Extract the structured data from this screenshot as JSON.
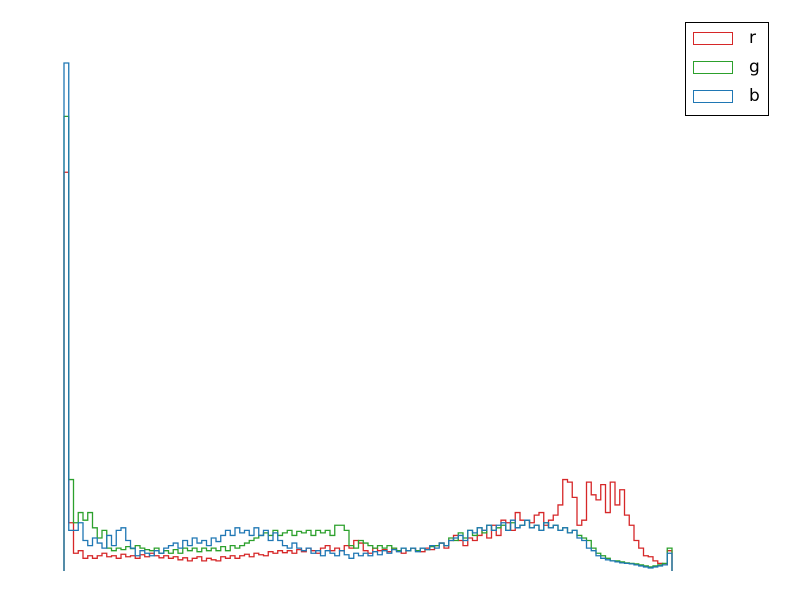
{
  "chart_data": {
    "type": "histogram",
    "title": "",
    "xlabel": "",
    "ylabel": "",
    "axes_visible": false,
    "grid": false,
    "legend_position": "top-right",
    "bins": 128,
    "ylim": [
      0,
      1
    ],
    "series": [
      {
        "name": "r",
        "color": "#d62728",
        "values": [
          0.785,
          0.095,
          0.035,
          0.04,
          0.025,
          0.03,
          0.025,
          0.03,
          0.035,
          0.028,
          0.03,
          0.025,
          0.033,
          0.028,
          0.03,
          0.025,
          0.032,
          0.028,
          0.035,
          0.03,
          0.026,
          0.03,
          0.025,
          0.028,
          0.022,
          0.026,
          0.02,
          0.025,
          0.028,
          0.02,
          0.025,
          0.022,
          0.02,
          0.028,
          0.025,
          0.03,
          0.025,
          0.03,
          0.033,
          0.028,
          0.035,
          0.032,
          0.03,
          0.038,
          0.035,
          0.04,
          0.036,
          0.04,
          0.035,
          0.042,
          0.038,
          0.045,
          0.04,
          0.035,
          0.045,
          0.05,
          0.04,
          0.045,
          0.04,
          0.05,
          0.045,
          0.06,
          0.055,
          0.04,
          0.035,
          0.045,
          0.04,
          0.042,
          0.038,
          0.045,
          0.04,
          0.035,
          0.04,
          0.045,
          0.04,
          0.038,
          0.045,
          0.042,
          0.05,
          0.055,
          0.045,
          0.06,
          0.07,
          0.06,
          0.05,
          0.065,
          0.06,
          0.07,
          0.08,
          0.065,
          0.09,
          0.07,
          0.1,
          0.095,
          0.08,
          0.115,
          0.1,
          0.1,
          0.095,
          0.11,
          0.115,
          0.09,
          0.1,
          0.11,
          0.13,
          0.18,
          0.175,
          0.145,
          0.09,
          0.1,
          0.175,
          0.15,
          0.14,
          0.17,
          0.115,
          0.175,
          0.13,
          0.16,
          0.11,
          0.09,
          0.06,
          0.045,
          0.03,
          0.028,
          0.02,
          0.015,
          0.012,
          0.04
        ]
      },
      {
        "name": "g",
        "color": "#2ca02c",
        "values": [
          0.895,
          0.18,
          0.095,
          0.115,
          0.1,
          0.115,
          0.085,
          0.065,
          0.08,
          0.045,
          0.04,
          0.045,
          0.042,
          0.048,
          0.044,
          0.05,
          0.045,
          0.042,
          0.04,
          0.045,
          0.035,
          0.04,
          0.035,
          0.042,
          0.035,
          0.045,
          0.04,
          0.045,
          0.038,
          0.045,
          0.04,
          0.045,
          0.04,
          0.048,
          0.04,
          0.05,
          0.045,
          0.05,
          0.055,
          0.06,
          0.065,
          0.07,
          0.075,
          0.07,
          0.08,
          0.07,
          0.075,
          0.08,
          0.07,
          0.078,
          0.075,
          0.08,
          0.07,
          0.08,
          0.075,
          0.08,
          0.07,
          0.09,
          0.09,
          0.08,
          0.05,
          0.045,
          0.06,
          0.055,
          0.05,
          0.045,
          0.05,
          0.045,
          0.05,
          0.045,
          0.04,
          0.045,
          0.04,
          0.045,
          0.04,
          0.045,
          0.042,
          0.048,
          0.05,
          0.055,
          0.05,
          0.065,
          0.06,
          0.075,
          0.065,
          0.08,
          0.07,
          0.085,
          0.075,
          0.09,
          0.08,
          0.085,
          0.09,
          0.08,
          0.095,
          0.085,
          0.09,
          0.1,
          0.085,
          0.09,
          0.08,
          0.095,
          0.085,
          0.09,
          0.08,
          0.085,
          0.075,
          0.08,
          0.07,
          0.065,
          0.06,
          0.045,
          0.035,
          0.03,
          0.025,
          0.02,
          0.02,
          0.018,
          0.016,
          0.015,
          0.014,
          0.012,
          0.01,
          0.008,
          0.01,
          0.012,
          0.015,
          0.045
        ]
      },
      {
        "name": "b",
        "color": "#1f77b4",
        "values": [
          1.0,
          0.08,
          0.08,
          0.095,
          0.06,
          0.05,
          0.065,
          0.055,
          0.045,
          0.07,
          0.05,
          0.08,
          0.085,
          0.06,
          0.045,
          0.03,
          0.04,
          0.035,
          0.03,
          0.04,
          0.035,
          0.045,
          0.05,
          0.055,
          0.045,
          0.06,
          0.05,
          0.065,
          0.055,
          0.06,
          0.05,
          0.065,
          0.058,
          0.07,
          0.08,
          0.07,
          0.085,
          0.075,
          0.08,
          0.07,
          0.085,
          0.07,
          0.08,
          0.06,
          0.075,
          0.06,
          0.05,
          0.045,
          0.055,
          0.045,
          0.04,
          0.045,
          0.035,
          0.04,
          0.03,
          0.04,
          0.035,
          0.03,
          0.04,
          0.032,
          0.025,
          0.035,
          0.03,
          0.035,
          0.03,
          0.038,
          0.032,
          0.04,
          0.035,
          0.042,
          0.038,
          0.045,
          0.04,
          0.045,
          0.038,
          0.045,
          0.042,
          0.05,
          0.045,
          0.055,
          0.05,
          0.06,
          0.065,
          0.07,
          0.06,
          0.08,
          0.075,
          0.085,
          0.08,
          0.09,
          0.08,
          0.09,
          0.095,
          0.08,
          0.1,
          0.085,
          0.09,
          0.1,
          0.085,
          0.09,
          0.08,
          0.095,
          0.085,
          0.09,
          0.08,
          0.085,
          0.075,
          0.08,
          0.065,
          0.06,
          0.045,
          0.04,
          0.03,
          0.025,
          0.022,
          0.02,
          0.018,
          0.016,
          0.015,
          0.014,
          0.012,
          0.01,
          0.008,
          0.006,
          0.008,
          0.01,
          0.012,
          0.035
        ]
      }
    ]
  }
}
